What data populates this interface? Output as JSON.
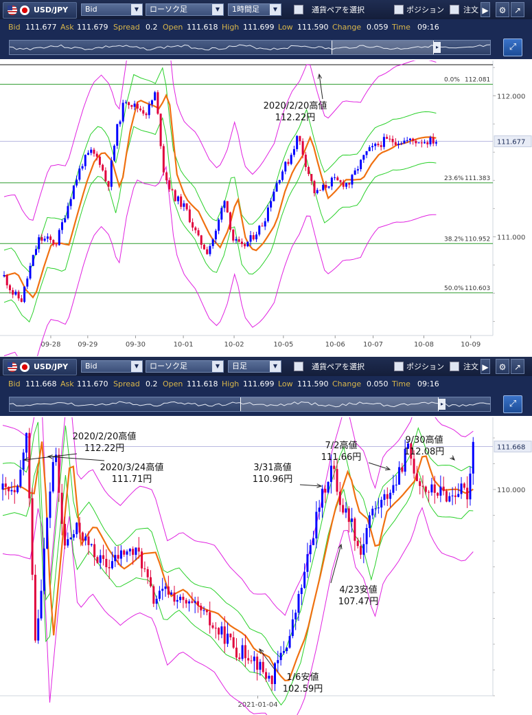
{
  "panels": [
    {
      "toolbar": {
        "symbol": "USD/JPY",
        "price_type": "Bid",
        "chart_style": "ローソク足",
        "timeframe": "1時間足",
        "pair_select_label": "通貨ペアを選択",
        "position_label": "ポジション",
        "order_label": "注文"
      },
      "quote": {
        "bid_label": "Bid",
        "bid": "111.677",
        "ask_label": "Ask",
        "ask": "111.679",
        "spread_label": "Spread",
        "spread": "0.2",
        "open_label": "Open",
        "open": "111.618",
        "high_label": "High",
        "high": "111.699",
        "low_label": "Low",
        "low": "111.590",
        "change_label": "Change",
        "change": "0.059",
        "time_label": "Time",
        "time": "09:16"
      },
      "navigator": {
        "window_start": 0.67,
        "window_end": 0.88
      },
      "chart_data": {
        "type": "line",
        "series_kind": "candlestick-with-bollinger-bands-and-moving-average",
        "x_ticks": [
          "09-28",
          "09-29",
          "09-30",
          "10-01",
          "10-02",
          "10-05",
          "10-06",
          "10-07",
          "10-08",
          "10-09"
        ],
        "y_ticks": [
          "112.000",
          "111.000"
        ],
        "ylim": [
          110.3,
          112.25
        ],
        "current_price": "111.677",
        "price_curve": [
          [
            0,
            110.72
          ],
          [
            0.02,
            110.6
          ],
          [
            0.04,
            110.55
          ],
          [
            0.06,
            110.78
          ],
          [
            0.08,
            110.98
          ],
          [
            0.1,
            110.98
          ],
          [
            0.12,
            110.95
          ],
          [
            0.14,
            111.15
          ],
          [
            0.16,
            111.35
          ],
          [
            0.18,
            111.52
          ],
          [
            0.2,
            111.6
          ],
          [
            0.22,
            111.55
          ],
          [
            0.24,
            111.35
          ],
          [
            0.26,
            111.75
          ],
          [
            0.28,
            111.98
          ],
          [
            0.3,
            111.93
          ],
          [
            0.33,
            111.88
          ],
          [
            0.35,
            112.02
          ],
          [
            0.37,
            111.45
          ],
          [
            0.39,
            111.3
          ],
          [
            0.42,
            111.2
          ],
          [
            0.45,
            110.98
          ],
          [
            0.47,
            110.9
          ],
          [
            0.49,
            111.03
          ],
          [
            0.51,
            111.28
          ],
          [
            0.53,
            110.98
          ],
          [
            0.55,
            110.92
          ],
          [
            0.57,
            110.98
          ],
          [
            0.6,
            111.1
          ],
          [
            0.62,
            111.3
          ],
          [
            0.64,
            111.45
          ],
          [
            0.66,
            111.55
          ],
          [
            0.68,
            111.72
          ],
          [
            0.7,
            111.5
          ],
          [
            0.72,
            111.3
          ],
          [
            0.74,
            111.35
          ],
          [
            0.76,
            111.4
          ],
          [
            0.78,
            111.38
          ],
          [
            0.8,
            111.38
          ],
          [
            0.82,
            111.5
          ],
          [
            0.84,
            111.6
          ],
          [
            0.86,
            111.64
          ],
          [
            0.88,
            111.68
          ]
        ],
        "fib_levels": [
          {
            "label": "0.0%",
            "value": 112.081,
            "text": "112.081"
          },
          {
            "label": "23.6%",
            "value": 111.383,
            "text": "111.383"
          },
          {
            "label": "38.2%",
            "value": 110.952,
            "text": "110.952"
          },
          {
            "label": "50.0%",
            "value": 110.603,
            "text": "110.603"
          }
        ],
        "annotations": [
          {
            "lines": [
              "2020/2/20高値",
              "112.22円"
            ]
          }
        ]
      }
    },
    {
      "toolbar": {
        "symbol": "USD/JPY",
        "price_type": "Bid",
        "chart_style": "ローソク足",
        "timeframe": "日足",
        "pair_select_label": "通貨ペアを選択",
        "position_label": "ポジション",
        "order_label": "注文"
      },
      "quote": {
        "bid_label": "Bid",
        "bid": "111.668",
        "ask_label": "Ask",
        "ask": "111.670",
        "spread_label": "Spread",
        "spread": "0.2",
        "open_label": "Open",
        "open": "111.618",
        "high_label": "High",
        "high": "111.699",
        "low_label": "Low",
        "low": "111.590",
        "change_label": "Change",
        "change": "0.050",
        "time_label": "Time",
        "time": "09:16"
      },
      "navigator": {
        "window_start": 0.48,
        "window_end": 0.89
      },
      "chart_data": {
        "type": "line",
        "series_kind": "candlestick-with-bollinger-bands-and-moving-average",
        "x_ticks": [
          "2021-01-04"
        ],
        "y_ticks": [
          "110.000"
        ],
        "ylim": [
          102.0,
          112.8
        ],
        "current_price": "111.668",
        "price_curve": [
          [
            0,
            110.0
          ],
          [
            0.03,
            109.7
          ],
          [
            0.05,
            112.22
          ],
          [
            0.07,
            104.0
          ],
          [
            0.09,
            108.0
          ],
          [
            0.11,
            111.71
          ],
          [
            0.13,
            107.8
          ],
          [
            0.16,
            108.5
          ],
          [
            0.19,
            107.6
          ],
          [
            0.22,
            107.0
          ],
          [
            0.26,
            107.6
          ],
          [
            0.29,
            107.5
          ],
          [
            0.32,
            105.7
          ],
          [
            0.35,
            106.1
          ],
          [
            0.38,
            105.6
          ],
          [
            0.42,
            105.3
          ],
          [
            0.45,
            104.6
          ],
          [
            0.48,
            104.2
          ],
          [
            0.5,
            103.7
          ],
          [
            0.53,
            103.6
          ],
          [
            0.55,
            103.0
          ],
          [
            0.57,
            102.59
          ],
          [
            0.59,
            103.5
          ],
          [
            0.61,
            104.3
          ],
          [
            0.64,
            106.6
          ],
          [
            0.67,
            109.2
          ],
          [
            0.7,
            110.96
          ],
          [
            0.72,
            109.3
          ],
          [
            0.74,
            108.9
          ],
          [
            0.76,
            107.47
          ],
          [
            0.78,
            109.0
          ],
          [
            0.81,
            109.6
          ],
          [
            0.84,
            110.4
          ],
          [
            0.86,
            111.66
          ],
          [
            0.88,
            110.5
          ],
          [
            0.9,
            110.0
          ],
          [
            0.93,
            109.9
          ],
          [
            0.95,
            109.7
          ],
          [
            0.97,
            110.0
          ],
          [
            0.99,
            109.8
          ],
          [
            1.0,
            112.08
          ]
        ],
        "annotations": [
          {
            "lines": [
              "2020/2/20高値",
              "112.22円"
            ]
          },
          {
            "lines": [
              "2020/3/24高値",
              "111.71円"
            ]
          },
          {
            "lines": [
              "3/31高値",
              "110.96円"
            ]
          },
          {
            "lines": [
              "7/2高値",
              "111.66円"
            ]
          },
          {
            "lines": [
              "9/30高値",
              "112.08円"
            ]
          },
          {
            "lines": [
              "4/23安値",
              "107.47円"
            ]
          },
          {
            "lines": [
              "1/6安値",
              "102.59円"
            ]
          }
        ]
      }
    }
  ],
  "colors": {
    "toolbar_bg": "#1a2a55",
    "up_candle": "#0000ff",
    "down_candle": "#e0003c",
    "moving_average": "#f07010",
    "bollinger_inner": "#28d028",
    "bollinger_outer": "#e020e0",
    "fib_line": "#2a9a2a",
    "current_line": "#b8b8e0"
  }
}
